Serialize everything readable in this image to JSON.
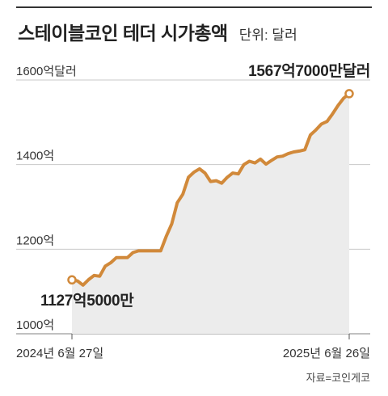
{
  "title": "스테이블코인 테더 시가총액",
  "unit": "단위: 달러",
  "source": "자료=코인게코",
  "colors": {
    "line": "#d1893a",
    "area": "#ececec",
    "grid": "#c8c8c8",
    "text": "#222222"
  },
  "chart_data": {
    "type": "area",
    "title": "스테이블코인 테더 시가총액",
    "unit": "달러",
    "ylim": [
      1000,
      1600
    ],
    "y_ticks": [
      1000,
      1200,
      1400,
      1600
    ],
    "y_tick_labels": [
      "1000억",
      "1200억",
      "1400억",
      "1600억달러"
    ],
    "x_labels": [
      "2024년 6월 27일",
      "2025년 6월 26일"
    ],
    "grid": true,
    "annotations": {
      "start_label": "1127억5000만",
      "end_label": "1567억7000만달러"
    },
    "series": [
      {
        "values": [
          1127.5,
          1125,
          1115,
          1128,
          1138,
          1136,
          1160,
          1168,
          1180,
          1180,
          1180,
          1192,
          1196,
          1196,
          1196,
          1196,
          1196,
          1230,
          1260,
          1310,
          1330,
          1370,
          1382,
          1390,
          1380,
          1360,
          1362,
          1356,
          1370,
          1380,
          1378,
          1400,
          1408,
          1404,
          1413,
          1401,
          1410,
          1418,
          1420,
          1426,
          1430,
          1432,
          1435,
          1470,
          1482,
          1496,
          1502,
          1520,
          1540,
          1557,
          1567.7
        ]
      }
    ]
  }
}
